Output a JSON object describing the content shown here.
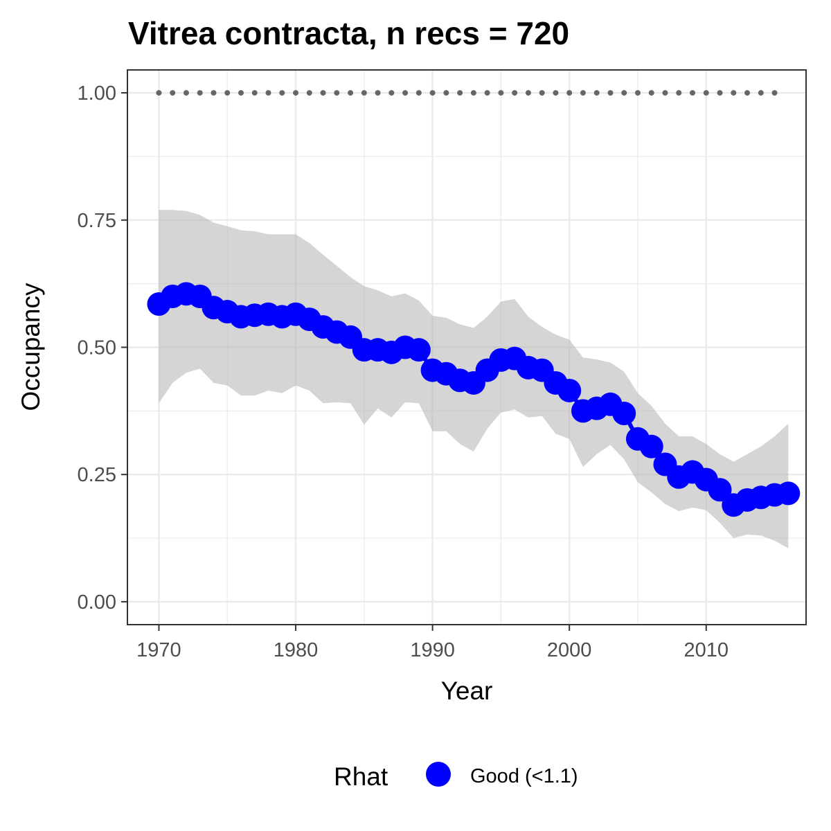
{
  "chart_data": {
    "type": "line",
    "title": "Vitrea contracta, n recs = 720",
    "xlabel": "Year",
    "ylabel": "Occupancy",
    "xlim": [
      1967.7,
      2017.3
    ],
    "ylim": [
      -0.045,
      1.045
    ],
    "x_ticks": [
      1970,
      1980,
      1990,
      2000,
      2010
    ],
    "x_tick_labels": [
      "1970",
      "1980",
      "1990",
      "2000",
      "2010"
    ],
    "y_ticks": [
      0,
      0.25,
      0.5,
      0.75,
      1.0
    ],
    "y_tick_labels": [
      "0.00",
      "0.25",
      "0.50",
      "0.75",
      "1.00"
    ],
    "grid": true,
    "series": [
      {
        "name": "Good (<1.1)",
        "color": "#0000ff",
        "x": [
          1970,
          1971,
          1972,
          1973,
          1974,
          1975,
          1976,
          1977,
          1978,
          1979,
          1980,
          1981,
          1982,
          1983,
          1984,
          1985,
          1986,
          1987,
          1988,
          1989,
          1990,
          1991,
          1992,
          1993,
          1994,
          1995,
          1996,
          1997,
          1998,
          1999,
          2000,
          2001,
          2002,
          2003,
          2004,
          2005,
          2006,
          2007,
          2008,
          2009,
          2010,
          2011,
          2012,
          2013,
          2014,
          2015,
          2016
        ],
        "y": [
          0.585,
          0.6,
          0.605,
          0.6,
          0.578,
          0.57,
          0.56,
          0.563,
          0.565,
          0.56,
          0.565,
          0.555,
          0.54,
          0.53,
          0.52,
          0.495,
          0.495,
          0.49,
          0.5,
          0.495,
          0.455,
          0.448,
          0.435,
          0.43,
          0.455,
          0.475,
          0.478,
          0.46,
          0.455,
          0.43,
          0.415,
          0.375,
          0.38,
          0.388,
          0.37,
          0.32,
          0.305,
          0.27,
          0.245,
          0.255,
          0.24,
          0.22,
          0.19,
          0.2,
          0.205,
          0.21,
          0.213
        ],
        "lower": [
          0.39,
          0.43,
          0.45,
          0.458,
          0.43,
          0.425,
          0.405,
          0.405,
          0.415,
          0.41,
          0.425,
          0.415,
          0.39,
          0.392,
          0.39,
          0.348,
          0.38,
          0.362,
          0.392,
          0.39,
          0.335,
          0.335,
          0.31,
          0.295,
          0.34,
          0.372,
          0.378,
          0.362,
          0.365,
          0.33,
          0.32,
          0.265,
          0.29,
          0.308,
          0.28,
          0.235,
          0.215,
          0.192,
          0.178,
          0.185,
          0.18,
          0.155,
          0.125,
          0.132,
          0.13,
          0.12,
          0.105
        ],
        "upper": [
          0.77,
          0.77,
          0.768,
          0.76,
          0.745,
          0.738,
          0.73,
          0.728,
          0.722,
          0.722,
          0.722,
          0.705,
          0.682,
          0.66,
          0.638,
          0.62,
          0.612,
          0.6,
          0.606,
          0.592,
          0.562,
          0.558,
          0.545,
          0.538,
          0.56,
          0.59,
          0.595,
          0.56,
          0.54,
          0.525,
          0.515,
          0.48,
          0.476,
          0.47,
          0.452,
          0.41,
          0.385,
          0.35,
          0.325,
          0.325,
          0.31,
          0.29,
          0.275,
          0.29,
          0.305,
          0.325,
          0.35
        ]
      }
    ],
    "reference_line": {
      "y": 1.0,
      "x_from": 1970,
      "x_to": 2015,
      "style": "dotted",
      "color": "#666666"
    },
    "ribbon_color": "#b3b3b3",
    "legend": {
      "title": "Rhat",
      "position": "bottom",
      "items": [
        {
          "label": "Good (<1.1)",
          "color": "#0000ff"
        }
      ]
    }
  }
}
